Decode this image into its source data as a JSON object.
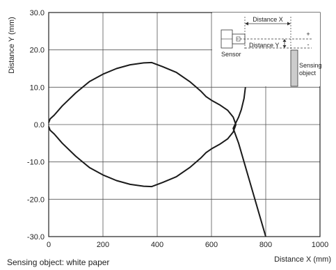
{
  "chart_data": {
    "type": "line",
    "title": "",
    "xlabel": "Distance X (mm)",
    "ylabel": "Distance Y (mm)",
    "xlim": [
      0,
      1000
    ],
    "ylim": [
      -30,
      30
    ],
    "xticks": [
      0,
      200,
      400,
      600,
      800,
      1000
    ],
    "yticks": [
      30,
      20,
      10,
      0,
      -10,
      -20,
      -30
    ],
    "xtick_labels": [
      "0",
      "200",
      "400",
      "600",
      "800",
      "1000"
    ],
    "ytick_labels": [
      "30.0",
      "20.0",
      "10.0",
      "0.0",
      "-10.0",
      "-20.0",
      "-30.0"
    ],
    "grid": true,
    "legend": "none",
    "line_color": "#1a1a1a",
    "series": [
      {
        "x": [
          0,
          5,
          20,
          50,
          100,
          150,
          200,
          250,
          300,
          350,
          380,
          420,
          470,
          520,
          560,
          580,
          600,
          630,
          660,
          680,
          690
        ],
        "y": [
          0.5,
          1.5,
          2.5,
          5.0,
          8.5,
          11.5,
          13.5,
          15.0,
          16.0,
          16.5,
          16.6,
          15.5,
          14.0,
          11.5,
          9.0,
          7.5,
          6.5,
          5.3,
          3.8,
          2.0,
          0
        ]
      },
      {
        "x": [
          0,
          5,
          20,
          50,
          100,
          150,
          200,
          250,
          300,
          350,
          380,
          420,
          470,
          520,
          560,
          580,
          600,
          630,
          660,
          680,
          690
        ],
        "y": [
          -0.5,
          -1.5,
          -2.5,
          -5.0,
          -8.5,
          -11.5,
          -13.5,
          -15.0,
          -16.0,
          -16.5,
          -16.6,
          -15.5,
          -14.0,
          -11.5,
          -9.0,
          -7.5,
          -6.5,
          -5.3,
          -3.8,
          -2.0,
          0
        ]
      },
      {
        "x": [
          725,
          720,
          710,
          700,
          690,
          680,
          690,
          700,
          720,
          740,
          760,
          780,
          800
        ],
        "y": [
          10.0,
          7.0,
          4.0,
          2.0,
          0.5,
          -1.0,
          -3.0,
          -5.0,
          -10.0,
          -15.0,
          -20.0,
          -25.0,
          -30.0
        ]
      }
    ],
    "inset": {
      "distance_x_label": "Distance X",
      "distance_y_label": "Distance Y",
      "sensor_label": "Sensor",
      "object_label_line1": "Sensing",
      "object_label_line2": "object",
      "plus_label": "+",
      "minus_label": "-"
    }
  },
  "caption": "Sensing object: white paper"
}
